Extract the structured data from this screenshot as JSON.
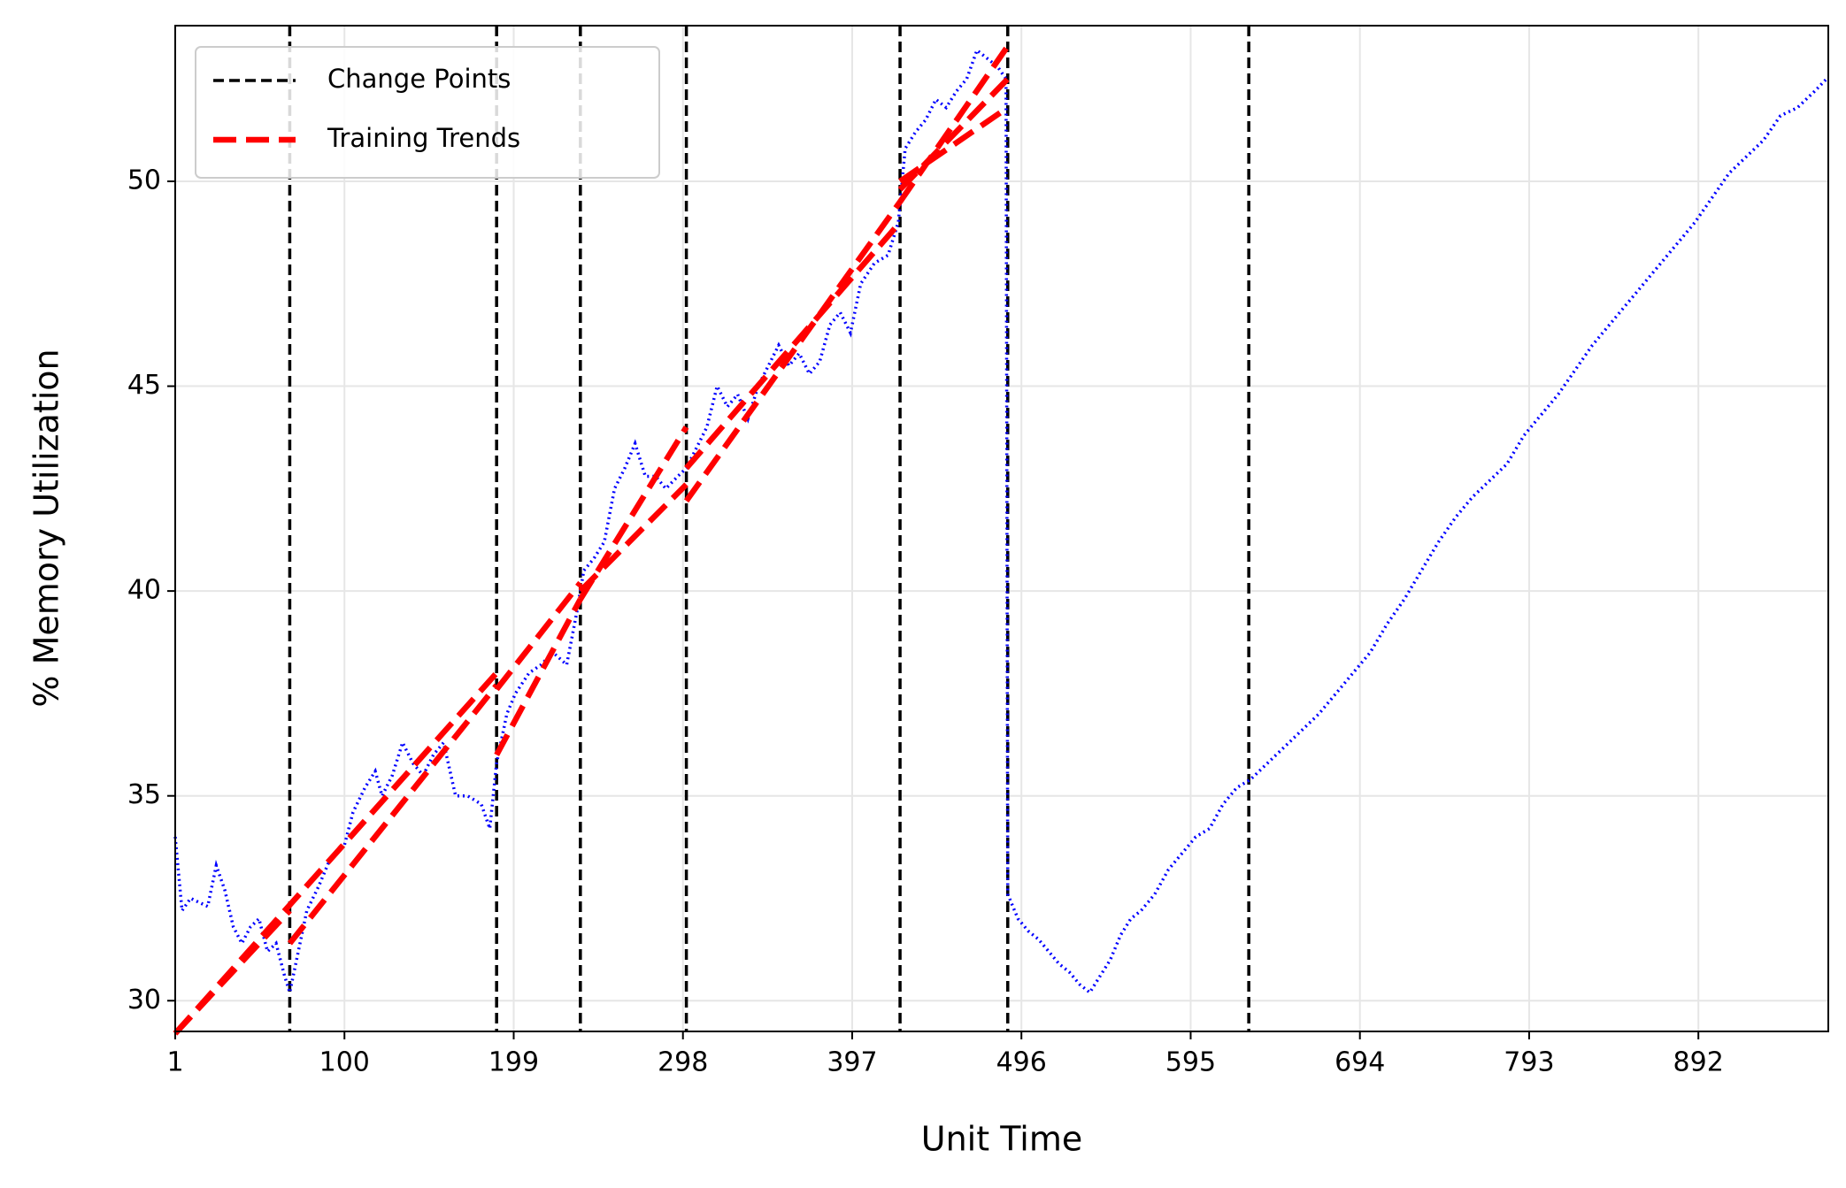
{
  "chart_data": {
    "type": "line",
    "xlabel": "Unit Time",
    "ylabel": "% Memory Utilization",
    "xlim": [
      1,
      968
    ],
    "ylim": [
      29.25,
      53.8
    ],
    "xticks": [
      1,
      100,
      199,
      298,
      397,
      496,
      595,
      694,
      793,
      892
    ],
    "yticks": [
      30,
      35,
      40,
      45,
      50
    ],
    "grid": true,
    "legend": "upper left",
    "x": [
      1,
      5,
      10,
      20,
      25,
      30,
      35,
      40,
      45,
      50,
      55,
      60,
      65,
      68,
      72,
      78,
      85,
      92,
      100,
      105,
      112,
      118,
      122,
      128,
      134,
      140,
      146,
      152,
      158,
      165,
      172,
      180,
      185,
      189,
      195,
      200,
      208,
      215,
      222,
      230,
      236,
      240,
      246,
      252,
      258,
      264,
      270,
      276,
      282,
      288,
      295,
      300,
      306,
      312,
      318,
      324,
      330,
      336,
      342,
      348,
      354,
      360,
      366,
      372,
      378,
      384,
      390,
      396,
      402,
      410,
      418,
      424,
      428,
      434,
      440,
      446,
      452,
      458,
      464,
      470,
      476,
      482,
      487,
      488,
      494,
      500,
      506,
      512,
      518,
      524,
      530,
      536,
      542,
      548,
      554,
      560,
      566,
      574,
      582,
      590,
      598,
      606,
      614,
      622,
      630,
      640,
      650,
      660,
      670,
      680,
      690,
      700,
      710,
      720,
      730,
      740,
      750,
      760,
      770,
      780,
      790,
      800,
      810,
      820,
      830,
      840,
      850,
      860,
      870,
      880,
      890,
      900,
      910,
      920,
      930,
      940,
      950,
      960,
      967
    ],
    "series": [
      {
        "color": "#0000ff",
        "values": [
          34.0,
          32.2,
          32.5,
          32.3,
          33.3,
          32.7,
          31.8,
          31.4,
          31.8,
          32.0,
          31.2,
          31.4,
          30.6,
          30.2,
          31.0,
          32.2,
          32.8,
          33.5,
          33.8,
          34.6,
          35.2,
          35.6,
          35.0,
          35.5,
          36.3,
          35.8,
          35.5,
          36.0,
          36.3,
          35.0,
          35.0,
          34.8,
          34.2,
          35.8,
          37.0,
          37.5,
          38.0,
          38.2,
          38.5,
          38.2,
          39.5,
          40.5,
          40.8,
          41.2,
          42.5,
          43.0,
          43.6,
          42.8,
          42.8,
          42.5,
          42.8,
          43.0,
          43.5,
          44.0,
          45.0,
          44.5,
          44.8,
          44.2,
          45.0,
          45.5,
          46.0,
          45.5,
          45.8,
          45.3,
          45.6,
          46.5,
          46.8,
          46.3,
          47.5,
          48.0,
          48.2,
          49.0,
          50.8,
          51.2,
          51.5,
          52.0,
          51.8,
          52.2,
          52.5,
          53.2,
          53.0,
          52.8,
          52.5,
          32.6,
          32.0,
          31.7,
          31.5,
          31.2,
          30.9,
          30.7,
          30.4,
          30.2,
          30.6,
          31.0,
          31.6,
          32.0,
          32.2,
          32.6,
          33.2,
          33.6,
          34.0,
          34.2,
          34.8,
          35.2,
          35.4,
          35.8,
          36.2,
          36.6,
          37.0,
          37.5,
          38.0,
          38.5,
          39.2,
          39.8,
          40.5,
          41.2,
          41.8,
          42.3,
          42.7,
          43.1,
          43.8,
          44.3,
          44.8,
          45.4,
          46.0,
          46.5,
          47.0,
          47.5,
          48.0,
          48.5,
          49.0,
          49.6,
          50.2,
          50.6,
          51.0,
          51.6,
          51.8,
          52.2,
          52.5
        ]
      }
    ],
    "change_points": {
      "name": "Change Points",
      "color": "#000000",
      "x": [
        68,
        189,
        238,
        300,
        425,
        488,
        629
      ]
    },
    "trends": {
      "name": "Training Trends",
      "color": "#ff0000",
      "segments": [
        {
          "x": [
            1,
            68
          ],
          "y": [
            29.2,
            32.2
          ]
        },
        {
          "x": [
            68,
            189
          ],
          "y": [
            31.4,
            37.7
          ]
        },
        {
          "x": [
            1,
            189
          ],
          "y": [
            29.2,
            38.0
          ]
        },
        {
          "x": [
            189,
            238
          ],
          "y": [
            36.0,
            39.8
          ]
        },
        {
          "x": [
            189,
            238
          ],
          "y": [
            37.6,
            40.2
          ]
        },
        {
          "x": [
            238,
            300
          ],
          "y": [
            39.8,
            44.0
          ]
        },
        {
          "x": [
            238,
            300
          ],
          "y": [
            40.0,
            42.6
          ]
        },
        {
          "x": [
            300,
            425
          ],
          "y": [
            42.2,
            49.5
          ]
        },
        {
          "x": [
            300,
            425
          ],
          "y": [
            43.0,
            49.0
          ]
        },
        {
          "x": [
            425,
            488
          ],
          "y": [
            49.5,
            53.3
          ]
        },
        {
          "x": [
            425,
            488
          ],
          "y": [
            50.0,
            51.8
          ]
        },
        {
          "x": [
            425,
            488
          ],
          "y": [
            49.8,
            52.5
          ]
        }
      ]
    }
  }
}
